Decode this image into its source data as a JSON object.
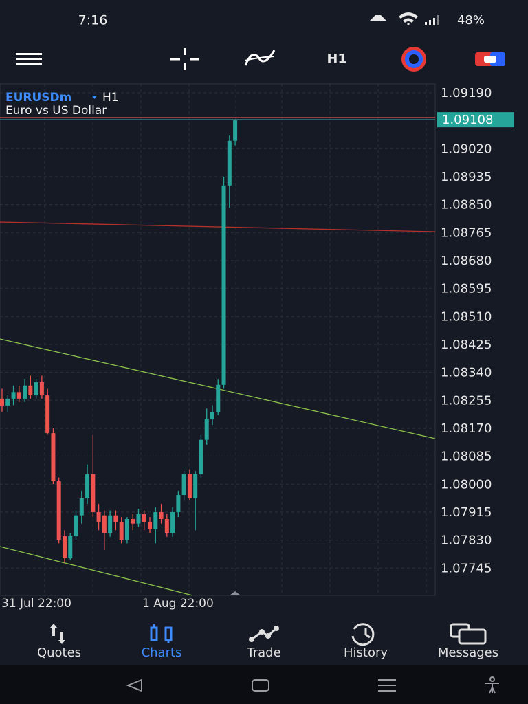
{
  "status_bar": {
    "time": "7:16",
    "battery": "48%"
  },
  "toolbar": {
    "timeframe": "H1"
  },
  "chart_data": {
    "type": "candlestick",
    "symbol": "EURUSDm",
    "timeframe": "H1",
    "description": "Euro vs US Dollar",
    "ylim": [
      1.07662,
      1.09217
    ],
    "yticks": [
      {
        "value": 1.0919,
        "label": "1.09190"
      },
      {
        "value": 1.0902,
        "label": "1.09020"
      },
      1.08935,
      {
        "value": 1.0885,
        "label": "1.08850"
      },
      1.08765,
      {
        "value": 1.0868,
        "label": "1.08680"
      },
      1.08595,
      {
        "value": 1.0851,
        "label": "1.08510"
      },
      1.08425,
      {
        "value": 1.0834,
        "label": "1.08340"
      },
      1.08255,
      {
        "value": 1.0817,
        "label": "1.08170"
      },
      1.08085,
      {
        "value": 1.08,
        "label": "1.08000"
      },
      1.07915,
      {
        "value": 1.0783,
        "label": "1.07830"
      },
      1.07745
    ],
    "current_price": 1.09108,
    "x_labels": [
      "31 Jul 22:00",
      "1 Aug 22:00"
    ],
    "up_color": "#26a69a",
    "down_color": "#ef5350",
    "open": [
      1.0826,
      1.08239,
      1.0826,
      1.0828,
      1.0826,
      1.083,
      1.0827,
      1.0831,
      1.0827,
      1.08155,
      1.08009,
      1.07842,
      1.07775,
      1.07842,
      1.07905,
      1.07957,
      1.0803,
      1.07915,
      1.07905,
      1.07852,
      1.07905,
      1.07884,
      1.07831,
      1.07894,
      1.0788,
      1.07909,
      1.07884,
      1.07863,
      1.07915,
      1.07894,
      1.07852,
      1.07915,
      1.07967,
      1.0803,
      1.07957,
      1.0803,
      1.08135,
      1.08197,
      1.08218,
      1.08302,
      1.08908,
      1.09044
    ],
    "high": [
      1.0829,
      1.0827,
      1.083,
      1.083,
      1.0832,
      1.0833,
      1.0832,
      1.0833,
      1.0829,
      1.0817,
      1.0802,
      1.0786,
      1.0785,
      1.0792,
      1.0798,
      1.0806,
      1.0815,
      1.0794,
      1.0792,
      1.0792,
      1.0792,
      1.079,
      1.079,
      1.0791,
      1.07925,
      1.0792,
      1.079,
      1.0793,
      1.0794,
      1.0791,
      1.0793,
      1.0798,
      1.0804,
      1.08045,
      1.0804,
      1.0815,
      1.0823,
      1.0824,
      1.0832,
      1.08935,
      1.0906,
      1.09108
    ],
    "low": [
      1.0822,
      1.08218,
      1.0824,
      1.0825,
      1.0825,
      1.0826,
      1.0826,
      1.0826,
      1.0815,
      1.08,
      1.0782,
      1.0776,
      1.07769,
      1.0783,
      1.0788,
      1.0794,
      1.079,
      1.0786,
      1.078,
      1.0784,
      1.0786,
      1.0782,
      1.0782,
      1.0786,
      1.0787,
      1.0786,
      1.0785,
      1.0782,
      1.0788,
      1.0784,
      1.0784,
      1.079,
      1.0795,
      1.0795,
      1.0786,
      1.0802,
      1.0812,
      1.0818,
      1.0821,
      1.0829,
      1.0884,
      1.0903
    ],
    "close": [
      1.08239,
      1.0826,
      1.0828,
      1.0826,
      1.083,
      1.0827,
      1.0831,
      1.0827,
      1.08155,
      1.08009,
      1.07831,
      1.07775,
      1.07842,
      1.07905,
      1.07957,
      1.0803,
      1.07915,
      1.07884,
      1.07852,
      1.07905,
      1.07884,
      1.07831,
      1.07894,
      1.0788,
      1.07909,
      1.07884,
      1.07863,
      1.07915,
      1.07894,
      1.07852,
      1.07915,
      1.07967,
      1.0803,
      1.07957,
      1.0803,
      1.08135,
      1.08197,
      1.08218,
      1.08302,
      1.08908,
      1.09044,
      1.09106
    ]
  },
  "nav": {
    "items": [
      "Quotes",
      "Charts",
      "Trade",
      "History",
      "Messages"
    ],
    "active": "Charts"
  }
}
